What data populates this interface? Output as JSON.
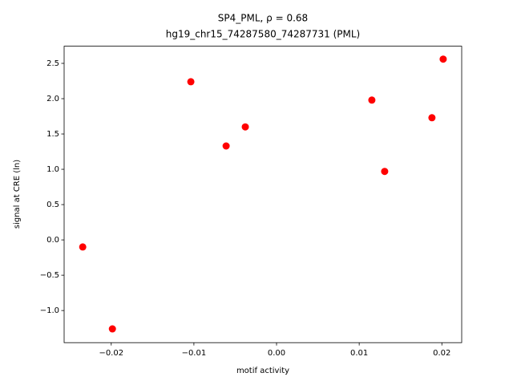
{
  "chart_data": {
    "type": "scatter",
    "title": "SP4_PML, ρ = 0.68",
    "subtitle": "hg19_chr15_74287580_74287731 (PML)",
    "x_label": "motif activity",
    "y_label": "signal at CRE (ln)",
    "series": [
      {
        "color": "#ff0000",
        "x": [
          -0.02345,
          -0.01986,
          -0.01037,
          -0.0061,
          -0.00378,
          0.01153,
          0.01308,
          0.0188,
          0.02016
        ],
        "values": [
          -0.1,
          -1.26,
          2.24,
          1.33,
          1.6,
          1.98,
          0.97,
          1.73,
          2.56
        ]
      }
    ],
    "xlim": [
      -0.0257,
      0.0224
    ],
    "ylim": [
      -1.455,
      2.743
    ],
    "xticks": [
      {
        "value": -0.02,
        "label": "−0.02"
      },
      {
        "value": -0.01,
        "label": "−0.01"
      },
      {
        "value": 0,
        "label": "0.00"
      },
      0.01,
      0.02
    ],
    "yticks": [
      {
        "value": -1,
        "label": "−1.0"
      },
      {
        "value": -0.5,
        "label": "−0.5"
      },
      {
        "value": 0,
        "label": "0.0"
      },
      0.5,
      {
        "value": 1,
        "label": "1.0"
      },
      1.5,
      {
        "value": 2,
        "label": "2.0"
      },
      2.5
    ]
  }
}
